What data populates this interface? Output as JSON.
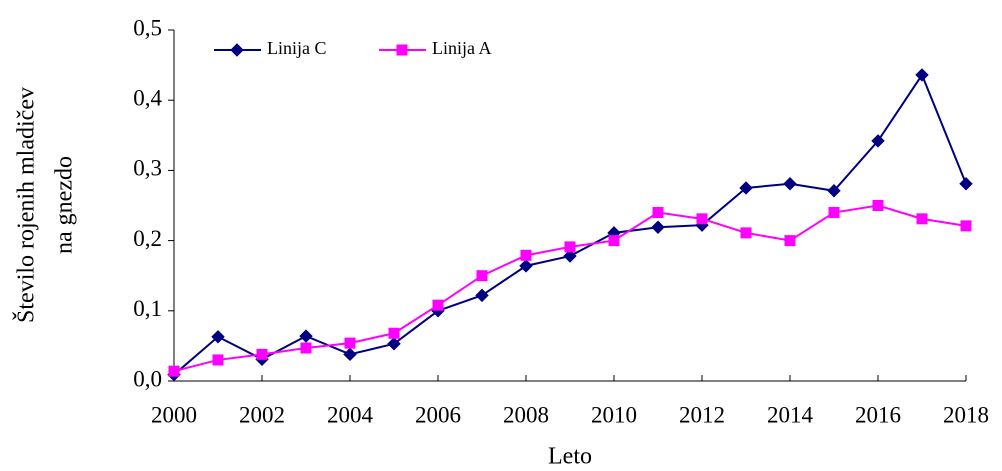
{
  "chart_data": {
    "type": "line",
    "ylabel": [
      "Število rojenih mladičev",
      "na gnezdo"
    ],
    "xlabel": "Leto",
    "x": [
      2000,
      2001,
      2002,
      2003,
      2004,
      2005,
      2006,
      2007,
      2008,
      2009,
      2010,
      2011,
      2012,
      2013,
      2014,
      2015,
      2016,
      2017,
      2018
    ],
    "series": [
      {
        "name": "Linija C",
        "color": "#000080",
        "marker": "diamond",
        "values": [
          0.009,
          0.063,
          0.031,
          0.064,
          0.038,
          0.053,
          0.1,
          0.122,
          0.164,
          0.178,
          0.211,
          0.219,
          0.222,
          0.275,
          0.281,
          0.271,
          0.342,
          0.436,
          0.281
        ]
      },
      {
        "name": "Linija A",
        "color": "#ff00ff",
        "marker": "square",
        "values": [
          0.014,
          0.03,
          0.038,
          0.047,
          0.054,
          0.068,
          0.108,
          0.15,
          0.179,
          0.191,
          0.2,
          0.24,
          0.231,
          0.211,
          0.2,
          0.24,
          0.25,
          0.231,
          0.221
        ]
      }
    ],
    "xlim": [
      2000,
      2018
    ],
    "xticks": [
      2000,
      2002,
      2004,
      2006,
      2008,
      2010,
      2012,
      2014,
      2016,
      2018
    ],
    "ylim": [
      0,
      0.5
    ],
    "yticks": [
      {
        "value": 0,
        "label": "0,0"
      },
      {
        "value": 0.1,
        "label": "0,1"
      },
      {
        "value": 0.2,
        "label": "0,2"
      },
      {
        "value": 0.3,
        "label": "0,3"
      },
      {
        "value": 0.4,
        "label": "0,4"
      },
      {
        "value": 0.5,
        "label": "0,5"
      }
    ],
    "grid": false,
    "legend": "top-left"
  }
}
